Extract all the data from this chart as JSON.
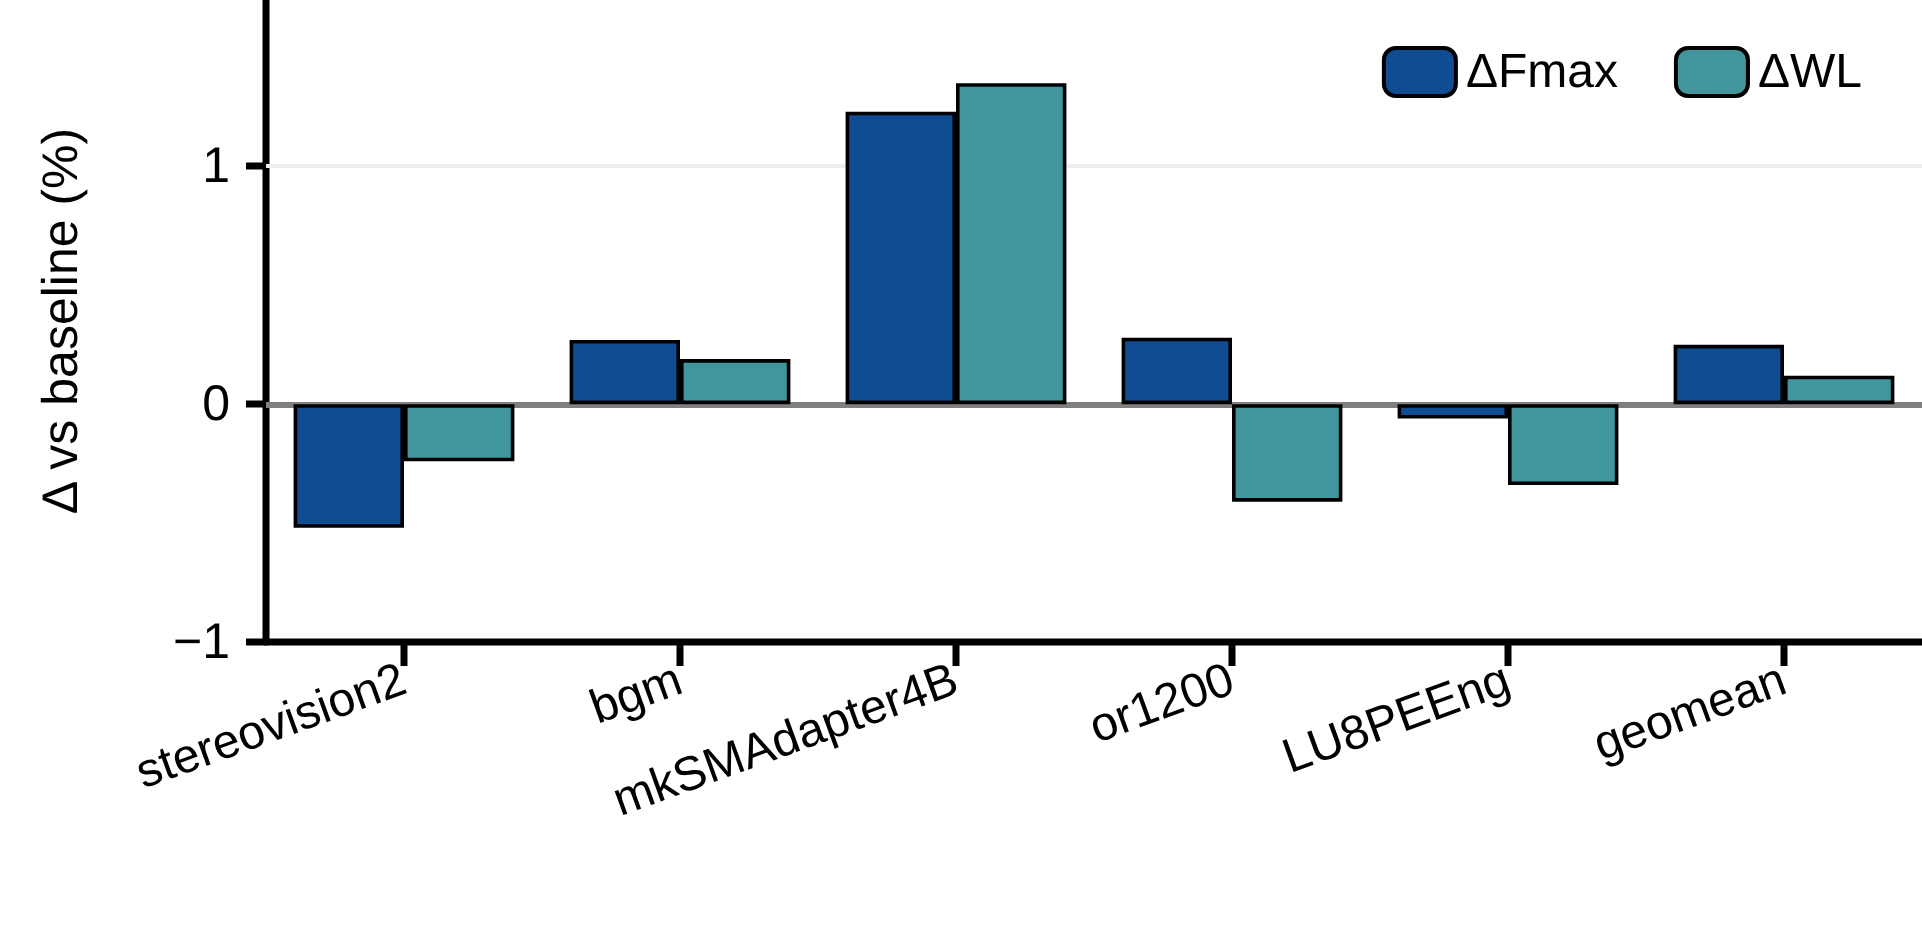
{
  "chart_data": {
    "type": "bar",
    "ylabel": "Δ vs baseline (%)",
    "categories": [
      "stereovision2",
      "bgm",
      "mkSMAdapter4B",
      "or1200",
      "LU8PEEng",
      "geomean"
    ],
    "series": [
      {
        "name": "ΔFmax",
        "color": "#0f4c92",
        "values": [
          -0.52,
          0.27,
          1.23,
          0.28,
          -0.06,
          0.25
        ]
      },
      {
        "name": "ΔWL",
        "color": "#41959c",
        "values": [
          -0.24,
          0.19,
          1.35,
          -0.41,
          -0.34,
          0.12
        ]
      }
    ],
    "ylim": [
      -1,
      1.7
    ],
    "yticks": [
      {
        "value": -1,
        "label": "−1"
      },
      0,
      1
    ],
    "ref_lines": [
      {
        "axis": "y",
        "value": 0,
        "color": "#808080"
      },
      {
        "axis": "y",
        "value": 1,
        "color": "#eeeeee"
      }
    ],
    "legend": "top right"
  }
}
